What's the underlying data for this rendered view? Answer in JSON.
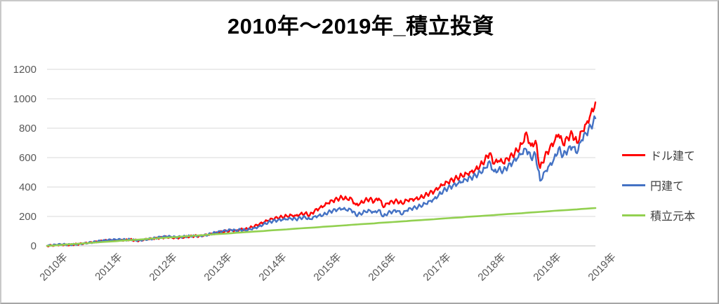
{
  "title": "2010年～2019年_積立投資",
  "legend": {
    "position": "right",
    "items": [
      {
        "label": "ドル建て",
        "color": "#ff0000"
      },
      {
        "label": "円建て",
        "color": "#4472c4"
      },
      {
        "label": "積立元本",
        "color": "#92d050"
      }
    ]
  },
  "colors": {
    "series_dollar": "#ff0000",
    "series_yen": "#4472c4",
    "series_principal": "#92d050",
    "gridline": "#d9d9d9",
    "axis_text": "#595959",
    "legend_text": "#3f3f3f",
    "title_text": "#000000",
    "frame_border": "#a6a6a6"
  },
  "chart_data": {
    "type": "line",
    "title": "2010年～2019年_積立投資",
    "xlabel": "",
    "ylabel": "",
    "x_unit": "month",
    "x_range": [
      "2010-01",
      "2019-12"
    ],
    "x_tick_labels": [
      "2010年",
      "2011年",
      "2012年",
      "2013年",
      "2014年",
      "2015年",
      "2016年",
      "2017年",
      "2018年",
      "2019年",
      "2019年"
    ],
    "ylim": [
      0,
      1200
    ],
    "y_ticks": [
      0,
      200,
      400,
      600,
      800,
      1000,
      1200
    ],
    "grid": "horizontal",
    "legend_position": "right",
    "series": [
      {
        "name": "ドル建て",
        "color": "#ff0000",
        "values": [
          0,
          3,
          6,
          9,
          8,
          7,
          10,
          13,
          16,
          19,
          23,
          28,
          33,
          36,
          38,
          40,
          41,
          40,
          43,
          38,
          36,
          41,
          44,
          48,
          52,
          56,
          60,
          58,
          55,
          58,
          61,
          64,
          67,
          66,
          69,
          74,
          81,
          88,
          95,
          100,
          108,
          104,
          115,
          112,
          122,
          132,
          145,
          158,
          172,
          182,
          190,
          196,
          204,
          210,
          206,
          218,
          222,
          208,
          235,
          252,
          268,
          290,
          305,
          318,
          330,
          322,
          325,
          280,
          292,
          310,
          318,
          300,
          322,
          262,
          290,
          298,
          305,
          290,
          312,
          318,
          322,
          330,
          342,
          358,
          368,
          392,
          415,
          430,
          448,
          462,
          480,
          492,
          505,
          522,
          548,
          582,
          629,
          557,
          578,
          562,
          590,
          615,
          650,
          692,
          772,
          680,
          715,
          529,
          605,
          655,
          700,
          757,
          686,
          733,
          762,
          700,
          780,
          830,
          900,
          976
        ]
      },
      {
        "name": "円建て",
        "color": "#4472c4",
        "values": [
          0,
          3,
          7,
          10,
          9,
          8,
          11,
          14,
          18,
          21,
          25,
          30,
          34,
          37,
          40,
          42,
          42,
          41,
          44,
          40,
          38,
          43,
          46,
          50,
          56,
          60,
          63,
          61,
          58,
          61,
          64,
          67,
          70,
          69,
          72,
          77,
          86,
          92,
          98,
          102,
          108,
          102,
          110,
          106,
          115,
          122,
          133,
          148,
          160,
          168,
          172,
          176,
          180,
          184,
          180,
          190,
          196,
          182,
          200,
          208,
          212,
          228,
          238,
          245,
          250,
          242,
          245,
          210,
          218,
          235,
          242,
          230,
          245,
          200,
          225,
          232,
          238,
          212,
          240,
          252,
          260,
          272,
          288,
          305,
          320,
          348,
          375,
          392,
          405,
          418,
          433,
          448,
          462,
          478,
          502,
          528,
          576,
          505,
          522,
          510,
          538,
          562,
          592,
          625,
          655,
          598,
          622,
          443,
          505,
          548,
          590,
          662,
          614,
          650,
          672,
          629,
          719,
          762,
          812,
          867
        ]
      },
      {
        "name": "積立元本",
        "color": "#92d050",
        "values": [
          0,
          2,
          4,
          6,
          9,
          11,
          13,
          15,
          17,
          19,
          22,
          24,
          26,
          28,
          30,
          32,
          35,
          37,
          39,
          41,
          43,
          45,
          48,
          50,
          52,
          54,
          56,
          58,
          60,
          63,
          65,
          67,
          69,
          71,
          73,
          76,
          78,
          80,
          82,
          84,
          86,
          89,
          91,
          93,
          95,
          97,
          99,
          101,
          104,
          106,
          108,
          110,
          112,
          115,
          117,
          119,
          121,
          123,
          125,
          127,
          130,
          132,
          134,
          136,
          138,
          140,
          143,
          145,
          147,
          149,
          151,
          153,
          156,
          158,
          160,
          162,
          164,
          166,
          168,
          171,
          173,
          175,
          177,
          179,
          181,
          184,
          186,
          188,
          190,
          192,
          194,
          197,
          199,
          201,
          203,
          205,
          207,
          209,
          212,
          214,
          216,
          218,
          220,
          222,
          225,
          227,
          229,
          231,
          233,
          235,
          238,
          240,
          242,
          244,
          246,
          248,
          251,
          253,
          255,
          257
        ]
      }
    ]
  }
}
